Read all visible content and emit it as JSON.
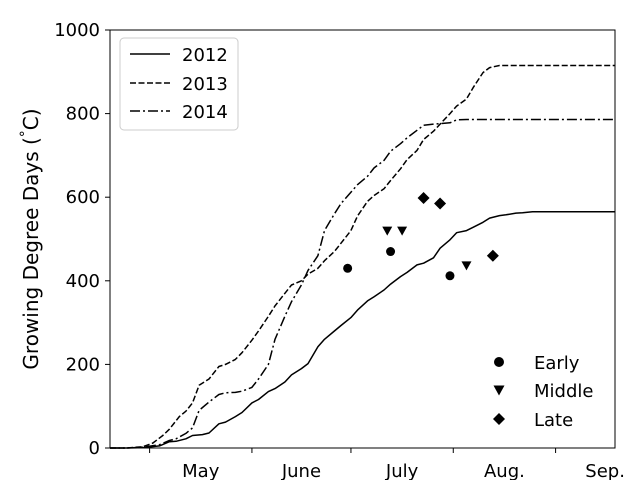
{
  "chart_data": {
    "type": "line",
    "title": "",
    "xlabel": "",
    "ylabel": "Growing Degree Days ($^\\circ$C)",
    "ylabel_text": "Growing Degree Days (",
    "ylabel_deg": "°",
    "ylabel_unit": "C)",
    "x_unit": "day of year",
    "xlim": [
      110,
      263
    ],
    "ylim": [
      0,
      1000
    ],
    "yticks": [
      0,
      200,
      400,
      600,
      800,
      1000
    ],
    "x_boundary_ticks": [
      122,
      153,
      183,
      214,
      245
    ],
    "x_month_labels": [
      {
        "label": "May",
        "x": 137.5
      },
      {
        "label": "June",
        "x": 168
      },
      {
        "label": "July",
        "x": 198.5
      },
      {
        "label": "Aug.",
        "x": 229.5
      },
      {
        "label": "Sep.",
        "x": 260
      }
    ],
    "grid": false,
    "legend_position": "upper-left",
    "series": [
      {
        "name": "2012",
        "style": "solid",
        "x": [
          110,
          115,
          120,
          125,
          128,
          130,
          133,
          135,
          138,
          140,
          143,
          145,
          148,
          150,
          153,
          155,
          158,
          160,
          163,
          165,
          168,
          170,
          173,
          175,
          178,
          180,
          183,
          185,
          188,
          190,
          193,
          195,
          198,
          200,
          203,
          205,
          208,
          210,
          213,
          215,
          218,
          220,
          223,
          225,
          228,
          230,
          233,
          235,
          238,
          240,
          243,
          245,
          248,
          250,
          253,
          255,
          258,
          260,
          263
        ],
        "y": [
          0,
          0,
          1,
          5,
          15,
          16,
          22,
          30,
          32,
          36,
          58,
          62,
          75,
          85,
          108,
          116,
          135,
          142,
          158,
          175,
          190,
          202,
          242,
          260,
          280,
          293,
          312,
          330,
          352,
          362,
          378,
          392,
          410,
          420,
          438,
          442,
          455,
          478,
          498,
          515,
          520,
          528,
          540,
          550,
          556,
          558,
          562,
          563,
          565,
          565,
          565,
          565,
          565,
          565,
          565,
          565,
          565,
          565,
          565
        ]
      },
      {
        "name": "2013",
        "style": "dashed",
        "x": [
          110,
          115,
          120,
          123,
          126,
          128,
          131,
          133,
          135,
          137,
          140,
          143,
          145,
          148,
          150,
          153,
          155,
          158,
          160,
          163,
          165,
          168,
          170,
          173,
          175,
          178,
          180,
          183,
          185,
          188,
          190,
          193,
          195,
          198,
          200,
          203,
          205,
          208,
          210,
          213,
          215,
          218,
          220,
          223,
          225,
          228,
          230,
          233,
          235,
          238,
          240,
          243,
          245,
          248,
          250,
          253,
          255,
          258,
          260,
          263
        ],
        "y": [
          0,
          0,
          3,
          12,
          30,
          45,
          75,
          88,
          108,
          150,
          165,
          195,
          200,
          212,
          228,
          258,
          280,
          315,
          340,
          370,
          390,
          400,
          416,
          430,
          448,
          470,
          490,
          520,
          555,
          590,
          604,
          620,
          640,
          668,
          690,
          712,
          738,
          758,
          775,
          800,
          818,
          835,
          862,
          898,
          910,
          915,
          915,
          915,
          915,
          915,
          915,
          915,
          915,
          915,
          915,
          915,
          915,
          915,
          915,
          915
        ]
      },
      {
        "name": "2014",
        "style": "dashdot",
        "x": [
          110,
          115,
          120,
          125,
          128,
          130,
          133,
          135,
          137,
          140,
          143,
          145,
          148,
          150,
          153,
          155,
          158,
          160,
          163,
          165,
          168,
          170,
          173,
          175,
          178,
          180,
          183,
          185,
          188,
          190,
          193,
          195,
          198,
          200,
          203,
          205,
          208,
          210,
          213,
          215,
          218,
          220,
          223,
          225,
          228,
          230,
          233,
          235,
          238,
          240,
          243,
          245,
          248,
          250,
          253,
          255,
          258,
          260,
          263
        ],
        "y": [
          0,
          0,
          2,
          8,
          18,
          22,
          35,
          48,
          90,
          110,
          128,
          132,
          133,
          136,
          145,
          165,
          200,
          260,
          315,
          350,
          390,
          425,
          460,
          520,
          560,
          585,
          612,
          630,
          650,
          670,
          688,
          710,
          728,
          742,
          760,
          772,
          775,
          776,
          778,
          785,
          786,
          786,
          786,
          786,
          786,
          786,
          786,
          786,
          786,
          786,
          786,
          786,
          786,
          786,
          786,
          786,
          786,
          786,
          786
        ]
      }
    ],
    "markers": {
      "legend": [
        {
          "name": "Early",
          "marker": "circle"
        },
        {
          "name": "Middle",
          "marker": "triangle-down"
        },
        {
          "name": "Late",
          "marker": "diamond"
        }
      ],
      "points": [
        {
          "series": "2013",
          "stage": "Early",
          "x": 182,
          "y": 430
        },
        {
          "series": "2012",
          "stage": "Early",
          "x": 213,
          "y": 412
        },
        {
          "series": "2014",
          "stage": "Early",
          "x": 195,
          "y": 470
        },
        {
          "series": "2013",
          "stage": "Middle",
          "x": 194,
          "y": 520
        },
        {
          "series": "2014",
          "stage": "Middle",
          "x": 198.5,
          "y": 520
        },
        {
          "series": "2012",
          "stage": "Middle",
          "x": 218,
          "y": 437
        },
        {
          "series": "2013",
          "stage": "Late",
          "x": 205,
          "y": 598
        },
        {
          "series": "2014",
          "stage": "Late",
          "x": 210,
          "y": 585
        },
        {
          "series": "2012",
          "stage": "Late",
          "x": 226,
          "y": 460
        }
      ]
    }
  }
}
